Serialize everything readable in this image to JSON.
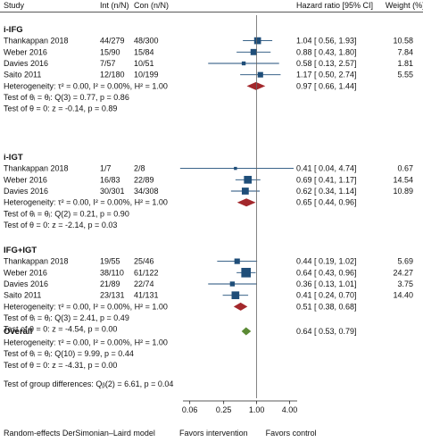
{
  "chart_data": {
    "type": "forest",
    "header": {
      "study": "Study",
      "int": "Int (n/N)",
      "con": "Con (n/N)",
      "estimate": "Hazard ratio [95% CI]",
      "weight": "Weight (%)"
    },
    "x_scale": "log",
    "x_ticks": [
      0.06,
      0.25,
      1.0,
      4.0
    ],
    "x_tick_labels": [
      "0.06",
      "0.25",
      "1.00",
      "4.00"
    ],
    "x_range": [
      0.045,
      5.5
    ],
    "null_value": 1.0,
    "x_annotations": [
      "Favors intervention",
      "Favors control"
    ],
    "footnote": "Random-effects DerSimonian–Laird model",
    "groups": [
      {
        "label": "i-IFG",
        "studies": [
          {
            "name": "Thankappan 2018",
            "int": "44/279",
            "con": "48/300",
            "hr": 1.04,
            "lo": 0.56,
            "hi": 1.93,
            "ci_text": "1.04 [ 0.56, 1.93]",
            "weight": 10.58,
            "weight_text": "10.58"
          },
          {
            "name": "Weber 2016",
            "int": "15/90",
            "con": "15/84",
            "hr": 0.88,
            "lo": 0.43,
            "hi": 1.8,
            "ci_text": "0.88 [ 0.43, 1.80]",
            "weight": 7.84,
            "weight_text": "7.84"
          },
          {
            "name": "Davies 2016",
            "int": "7/57",
            "con": "10/51",
            "hr": 0.58,
            "lo": 0.13,
            "hi": 2.57,
            "ci_text": "0.58 [ 0.13, 2.57]",
            "weight": 1.81,
            "weight_text": "1.81"
          },
          {
            "name": "Saito 2011",
            "int": "12/180",
            "con": "10/199",
            "hr": 1.17,
            "lo": 0.5,
            "hi": 2.74,
            "ci_text": "1.17 [ 0.50, 2.74]",
            "weight": 5.55,
            "weight_text": "5.55"
          }
        ],
        "pooled": {
          "hr": 0.97,
          "lo": 0.66,
          "hi": 1.44,
          "ci_text": "0.97 [ 0.66, 1.44]"
        },
        "heterogeneity": "Heterogeneity: τ² = 0.00, I² = 0.00%, H² = 1.00",
        "homogeneity": "Test of θᵢ = θⱼ: Q(3) = 0.77, p = 0.86",
        "effect_test": "Test of θ = 0: z = -0.14, p = 0.89"
      },
      {
        "label": "i-IGT",
        "studies": [
          {
            "name": "Thankappan 2018",
            "int": "1/7",
            "con": "2/8",
            "hr": 0.41,
            "lo": 0.04,
            "hi": 4.74,
            "ci_text": "0.41 [ 0.04, 4.74]",
            "weight": 0.67,
            "weight_text": "0.67"
          },
          {
            "name": "Weber 2016",
            "int": "16/83",
            "con": "22/89",
            "hr": 0.69,
            "lo": 0.41,
            "hi": 1.17,
            "ci_text": "0.69 [ 0.41, 1.17]",
            "weight": 14.54,
            "weight_text": "14.54"
          },
          {
            "name": "Davies 2016",
            "int": "30/301",
            "con": "34/308",
            "hr": 0.62,
            "lo": 0.34,
            "hi": 1.14,
            "ci_text": "0.62 [ 0.34, 1.14]",
            "weight": 10.89,
            "weight_text": "10.89"
          }
        ],
        "pooled": {
          "hr": 0.65,
          "lo": 0.44,
          "hi": 0.96,
          "ci_text": "0.65 [ 0.44, 0.96]"
        },
        "heterogeneity": "Heterogeneity: τ² = 0.00, I² = 0.00%, H² = 1.00",
        "homogeneity": "Test of θᵢ = θⱼ: Q(2) = 0.21, p = 0.90",
        "effect_test": "Test of θ = 0: z = -2.14, p = 0.03"
      },
      {
        "label": "IFG+IGT",
        "studies": [
          {
            "name": "Thankappan 2018",
            "int": "19/55",
            "con": "25/46",
            "hr": 0.44,
            "lo": 0.19,
            "hi": 1.02,
            "ci_text": "0.44 [ 0.19, 1.02]",
            "weight": 5.69,
            "weight_text": "5.69"
          },
          {
            "name": "Weber 2016",
            "int": "38/110",
            "con": "61/122",
            "hr": 0.64,
            "lo": 0.43,
            "hi": 0.96,
            "ci_text": "0.64 [ 0.43, 0.96]",
            "weight": 24.27,
            "weight_text": "24.27"
          },
          {
            "name": "Davies 2016",
            "int": "21/89",
            "con": "22/74",
            "hr": 0.36,
            "lo": 0.13,
            "hi": 1.01,
            "ci_text": "0.36 [ 0.13, 1.01]",
            "weight": 3.75,
            "weight_text": "3.75"
          },
          {
            "name": "Saito 2011",
            "int": "23/131",
            "con": "41/131",
            "hr": 0.41,
            "lo": 0.24,
            "hi": 0.7,
            "ci_text": "0.41 [ 0.24, 0.70]",
            "weight": 14.4,
            "weight_text": "14.40"
          }
        ],
        "pooled": {
          "hr": 0.51,
          "lo": 0.38,
          "hi": 0.68,
          "ci_text": "0.51 [ 0.38, 0.68]"
        },
        "heterogeneity": "Heterogeneity: τ² = 0.00, I² = 0.00%, H² = 1.00",
        "homogeneity": "Test of θᵢ = θⱼ: Q(3) = 2.41, p = 0.49",
        "effect_test": "Test of θ = 0: z = -4.54, p = 0.00"
      }
    ],
    "overall": {
      "label": "Overall",
      "hr": 0.64,
      "lo": 0.53,
      "hi": 0.79,
      "ci_text": "0.64 [ 0.53, 0.79]",
      "heterogeneity": "Heterogeneity: τ² = 0.00, I² = 0.00%, H² = 1.00",
      "homogeneity": "Test of θᵢ = θⱼ: Q(10) = 9.99, p = 0.44",
      "effect_test": "Test of θ = 0: z = -4.31, p = 0.00"
    },
    "group_differences": "Test of group differences: Qᵦ(2) = 6.61, p = 0.04",
    "colors": {
      "marker": "#1f4e79",
      "subgroup_diamond": "#a3282c",
      "overall_diamond": "#5b8a34",
      "null_line": "#666666",
      "text": "#111111"
    }
  }
}
